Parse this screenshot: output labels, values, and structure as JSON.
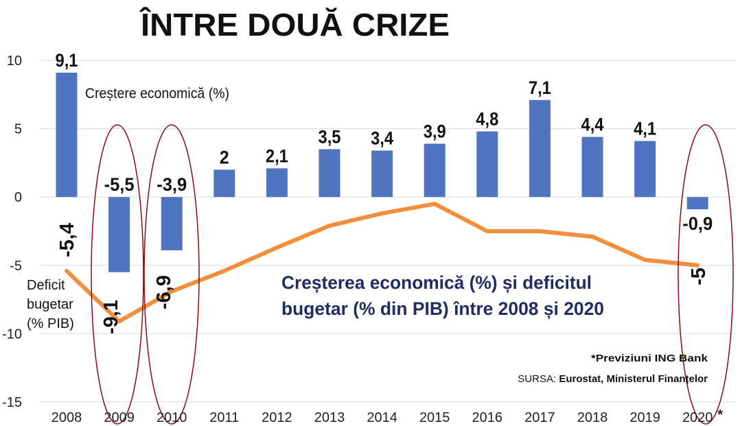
{
  "chart_data": {
    "type": "bar",
    "title": "ÎNTRE DOUĂ CRIZE",
    "subtitle_line1": "Creșterea economică (%) și deficitul",
    "subtitle_line2": "bugetar (% din PIB) între 2008 și 2020",
    "categories": [
      "2008",
      "2009",
      "2010",
      "2011",
      "2012",
      "2013",
      "2014",
      "2015",
      "2016",
      "2017",
      "2018",
      "2019",
      "2020"
    ],
    "last_category_marker": "*",
    "ylim": [
      -15,
      10
    ],
    "yticks": [
      "10",
      "5",
      "0",
      "-5",
      "-10",
      "-15"
    ],
    "grid": true,
    "series": [
      {
        "name": "Creștere economică (%)",
        "type": "bar",
        "color": "#4f74c0",
        "values": [
          9.1,
          -5.5,
          -3.9,
          2,
          2.1,
          3.5,
          3.4,
          3.9,
          4.8,
          7.1,
          4.4,
          4.1,
          -0.9
        ],
        "labels": [
          "9,1",
          "-5,5",
          "-3,9",
          "2",
          "2,1",
          "3,5",
          "3,4",
          "3,9",
          "4,8",
          "7,1",
          "4,4",
          "4,1",
          "-0,9"
        ]
      },
      {
        "name": "Deficit bugetar (% PIB)",
        "type": "line",
        "color": "#f28e3c",
        "values": [
          -5.4,
          -9.1,
          -6.9,
          -5.4,
          -3.7,
          -2.1,
          -1.2,
          -0.5,
          -2.5,
          -2.5,
          -2.9,
          -4.6,
          -5.0
        ],
        "labels": [
          "-5,4",
          "-9,1",
          "-6,9",
          "",
          "",
          "",
          "",
          "",
          "",
          "",
          "",
          "",
          "-5"
        ]
      }
    ],
    "deficit_label_lines": [
      "Deficit",
      "bugetar",
      "(% PIB)"
    ],
    "highlight_color": "#8b0a0a",
    "highlighted_categories": [
      "2009",
      "2010",
      "2020"
    ]
  },
  "notes": {
    "forecast": "*Previziuni ING Bank",
    "source_prefix": "SURSA:",
    "source_text": "Eurostat, Ministerul Finanțelor"
  }
}
